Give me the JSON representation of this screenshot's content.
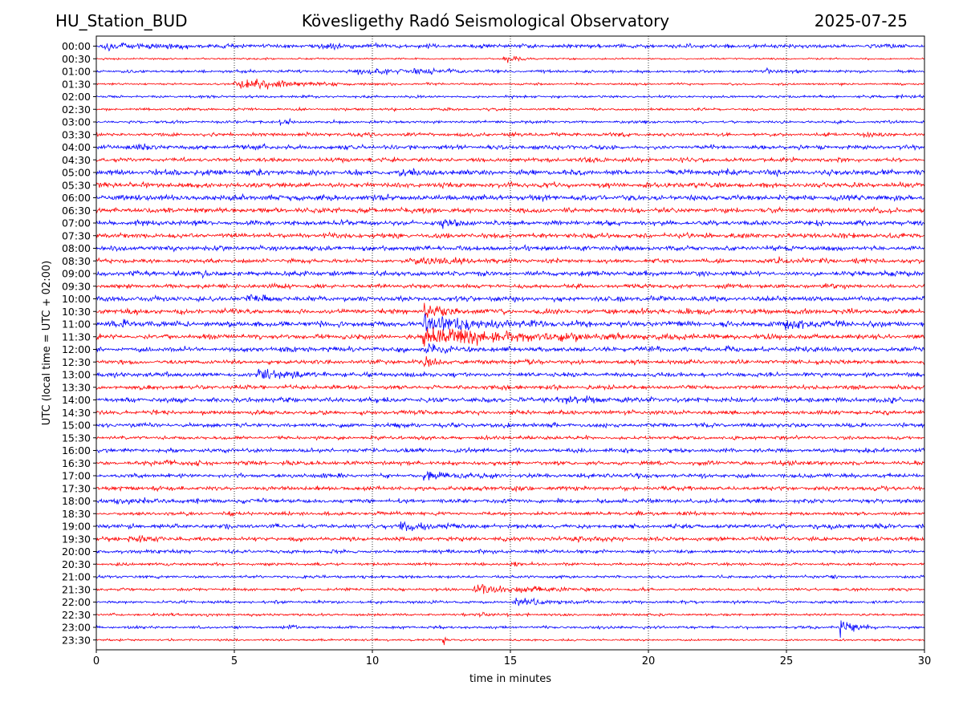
{
  "chart_data": {
    "type": "line",
    "title_left": "HU_Station_BUD",
    "title": "Kövesligethy Radó Seismological Observatory",
    "title_right": "2025-07-25",
    "xlabel": "time in minutes",
    "ylabel": "UTC (local time = UTC + 02:00)",
    "xlim": [
      0,
      30
    ],
    "xticks": [
      0,
      5,
      10,
      15,
      20,
      25,
      30
    ],
    "grid_x": true,
    "series_colors": {
      "even_rows": "#0000ff",
      "odd_rows": "#ff0000"
    },
    "rows": [
      {
        "label": "00:00",
        "amp": 3.0,
        "events": [
          {
            "t": 0.3,
            "a": 9,
            "d": 0.6
          },
          {
            "t": 8.1,
            "a": 5,
            "d": 0.7
          },
          {
            "t": 1.5,
            "a": 2.5,
            "d": 1.5
          }
        ]
      },
      {
        "label": "00:30",
        "amp": 1.2,
        "events": [
          {
            "t": 14.8,
            "a": 6,
            "d": 0.5
          },
          {
            "t": 0.3,
            "a": 3,
            "d": 0.3
          }
        ]
      },
      {
        "label": "01:00",
        "amp": 2.0,
        "events": [
          {
            "t": 9.5,
            "a": 4,
            "d": 1.5
          },
          {
            "t": 11.5,
            "a": 3,
            "d": 1.2
          },
          {
            "t": 24.2,
            "a": 3.5,
            "d": 0.8
          }
        ]
      },
      {
        "label": "01:30",
        "amp": 1.5,
        "events": [
          {
            "t": 5.0,
            "a": 10,
            "d": 1.8
          }
        ]
      },
      {
        "label": "02:00",
        "amp": 1.8,
        "events": [
          {
            "t": 29.0,
            "a": 3,
            "d": 0.4
          }
        ]
      },
      {
        "label": "02:30",
        "amp": 1.8,
        "events": []
      },
      {
        "label": "03:00",
        "amp": 2.0,
        "events": [
          {
            "t": 6.7,
            "a": 3,
            "d": 0.4
          }
        ]
      },
      {
        "label": "03:30",
        "amp": 2.5,
        "events": [
          {
            "t": 27.8,
            "a": 4,
            "d": 0.4
          }
        ]
      },
      {
        "label": "04:00",
        "amp": 3.0,
        "events": [
          {
            "t": 5.5,
            "a": 4,
            "d": 0.5
          },
          {
            "t": 1.1,
            "a": 3.5,
            "d": 0.5
          }
        ]
      },
      {
        "label": "04:30",
        "amp": 3.0,
        "events": []
      },
      {
        "label": "05:00",
        "amp": 4.0,
        "events": [
          {
            "t": 11.0,
            "a": 5,
            "d": 0.5
          }
        ]
      },
      {
        "label": "05:30",
        "amp": 3.5,
        "events": []
      },
      {
        "label": "06:00",
        "amp": 4.0,
        "events": []
      },
      {
        "label": "06:30",
        "amp": 3.5,
        "events": []
      },
      {
        "label": "07:00",
        "amp": 3.5,
        "events": [
          {
            "t": 12.5,
            "a": 4.5,
            "d": 0.4
          }
        ]
      },
      {
        "label": "07:30",
        "amp": 3.5,
        "events": []
      },
      {
        "label": "08:00",
        "amp": 3.5,
        "events": []
      },
      {
        "label": "08:30",
        "amp": 3.0,
        "events": [
          {
            "t": 11.5,
            "a": 8,
            "d": 1.0
          },
          {
            "t": 24.5,
            "a": 4,
            "d": 0.6
          },
          {
            "t": 27.5,
            "a": 4,
            "d": 0.5
          }
        ]
      },
      {
        "label": "09:00",
        "amp": 3.5,
        "events": [
          {
            "t": 3.8,
            "a": 5,
            "d": 0.5
          }
        ]
      },
      {
        "label": "09:30",
        "amp": 3.0,
        "events": []
      },
      {
        "label": "10:00",
        "amp": 3.5,
        "events": [
          {
            "t": 5.5,
            "a": 5,
            "d": 0.6
          }
        ]
      },
      {
        "label": "10:30",
        "amp": 3.5,
        "events": [
          {
            "t": 11.9,
            "a": 13,
            "d": 0.6
          }
        ]
      },
      {
        "label": "11:00",
        "amp": 4.0,
        "events": [
          {
            "t": 11.9,
            "a": 16,
            "d": 1.5
          },
          {
            "t": 24.9,
            "a": 9,
            "d": 0.7
          },
          {
            "t": 0.5,
            "a": 4,
            "d": 1.0
          }
        ]
      },
      {
        "label": "11:30",
        "amp": 3.5,
        "events": [
          {
            "t": 11.8,
            "a": 16,
            "d": 3.0
          }
        ]
      },
      {
        "label": "12:00",
        "amp": 3.5,
        "events": [
          {
            "t": 11.9,
            "a": 8,
            "d": 0.7
          },
          {
            "t": 22.8,
            "a": 4,
            "d": 0.5
          }
        ]
      },
      {
        "label": "12:30",
        "amp": 3.0,
        "events": [
          {
            "t": 11.9,
            "a": 6,
            "d": 0.4
          }
        ]
      },
      {
        "label": "13:00",
        "amp": 3.0,
        "events": [
          {
            "t": 5.8,
            "a": 8,
            "d": 1.2
          }
        ]
      },
      {
        "label": "13:30",
        "amp": 3.0,
        "events": []
      },
      {
        "label": "14:00",
        "amp": 3.5,
        "events": [
          {
            "t": 16.5,
            "a": 5,
            "d": 1.5
          }
        ]
      },
      {
        "label": "14:30",
        "amp": 3.0,
        "events": []
      },
      {
        "label": "15:00",
        "amp": 3.0,
        "events": []
      },
      {
        "label": "15:30",
        "amp": 2.5,
        "events": []
      },
      {
        "label": "16:00",
        "amp": 3.0,
        "events": []
      },
      {
        "label": "16:30",
        "amp": 3.0,
        "events": [
          {
            "t": 24.8,
            "a": 5,
            "d": 0.5
          },
          {
            "t": 2.5,
            "a": 4,
            "d": 0.4
          }
        ]
      },
      {
        "label": "17:00",
        "amp": 3.0,
        "events": [
          {
            "t": 11.9,
            "a": 9,
            "d": 0.8
          }
        ]
      },
      {
        "label": "17:30",
        "amp": 3.0,
        "events": []
      },
      {
        "label": "18:00",
        "amp": 3.0,
        "events": [
          {
            "t": 0.7,
            "a": 5,
            "d": 0.6
          }
        ]
      },
      {
        "label": "18:30",
        "amp": 2.5,
        "events": []
      },
      {
        "label": "19:00",
        "amp": 3.0,
        "events": [
          {
            "t": 11.0,
            "a": 5,
            "d": 1.5
          },
          {
            "t": 26.0,
            "a": 4,
            "d": 0.8
          }
        ]
      },
      {
        "label": "19:30",
        "amp": 3.0,
        "events": [
          {
            "t": 1.2,
            "a": 4,
            "d": 0.6
          },
          {
            "t": 17.3,
            "a": 4,
            "d": 0.4
          }
        ]
      },
      {
        "label": "20:00",
        "amp": 2.5,
        "events": [
          {
            "t": 2.0,
            "a": 4,
            "d": 0.3
          }
        ]
      },
      {
        "label": "20:30",
        "amp": 2.0,
        "events": [
          {
            "t": 15.0,
            "a": 3,
            "d": 0.3
          }
        ]
      },
      {
        "label": "21:00",
        "amp": 2.0,
        "events": [
          {
            "t": 26.7,
            "a": 3,
            "d": 0.3
          }
        ]
      },
      {
        "label": "21:30",
        "amp": 2.0,
        "events": [
          {
            "t": 13.7,
            "a": 8,
            "d": 1.8
          }
        ]
      },
      {
        "label": "22:00",
        "amp": 2.0,
        "events": [
          {
            "t": 15.2,
            "a": 7,
            "d": 1.2
          }
        ]
      },
      {
        "label": "22:30",
        "amp": 1.8,
        "events": [
          {
            "t": 13.8,
            "a": 4,
            "d": 0.4
          },
          {
            "t": 2.6,
            "a": 4,
            "d": 0.2
          }
        ]
      },
      {
        "label": "23:00",
        "amp": 2.0,
        "events": [
          {
            "t": 26.9,
            "a": 13,
            "d": 0.5
          },
          {
            "t": 7.0,
            "a": 3,
            "d": 0.3
          }
        ]
      },
      {
        "label": "23:30",
        "amp": 1.5,
        "events": [
          {
            "t": 12.6,
            "a": 8,
            "d": 0.1
          }
        ]
      }
    ]
  }
}
